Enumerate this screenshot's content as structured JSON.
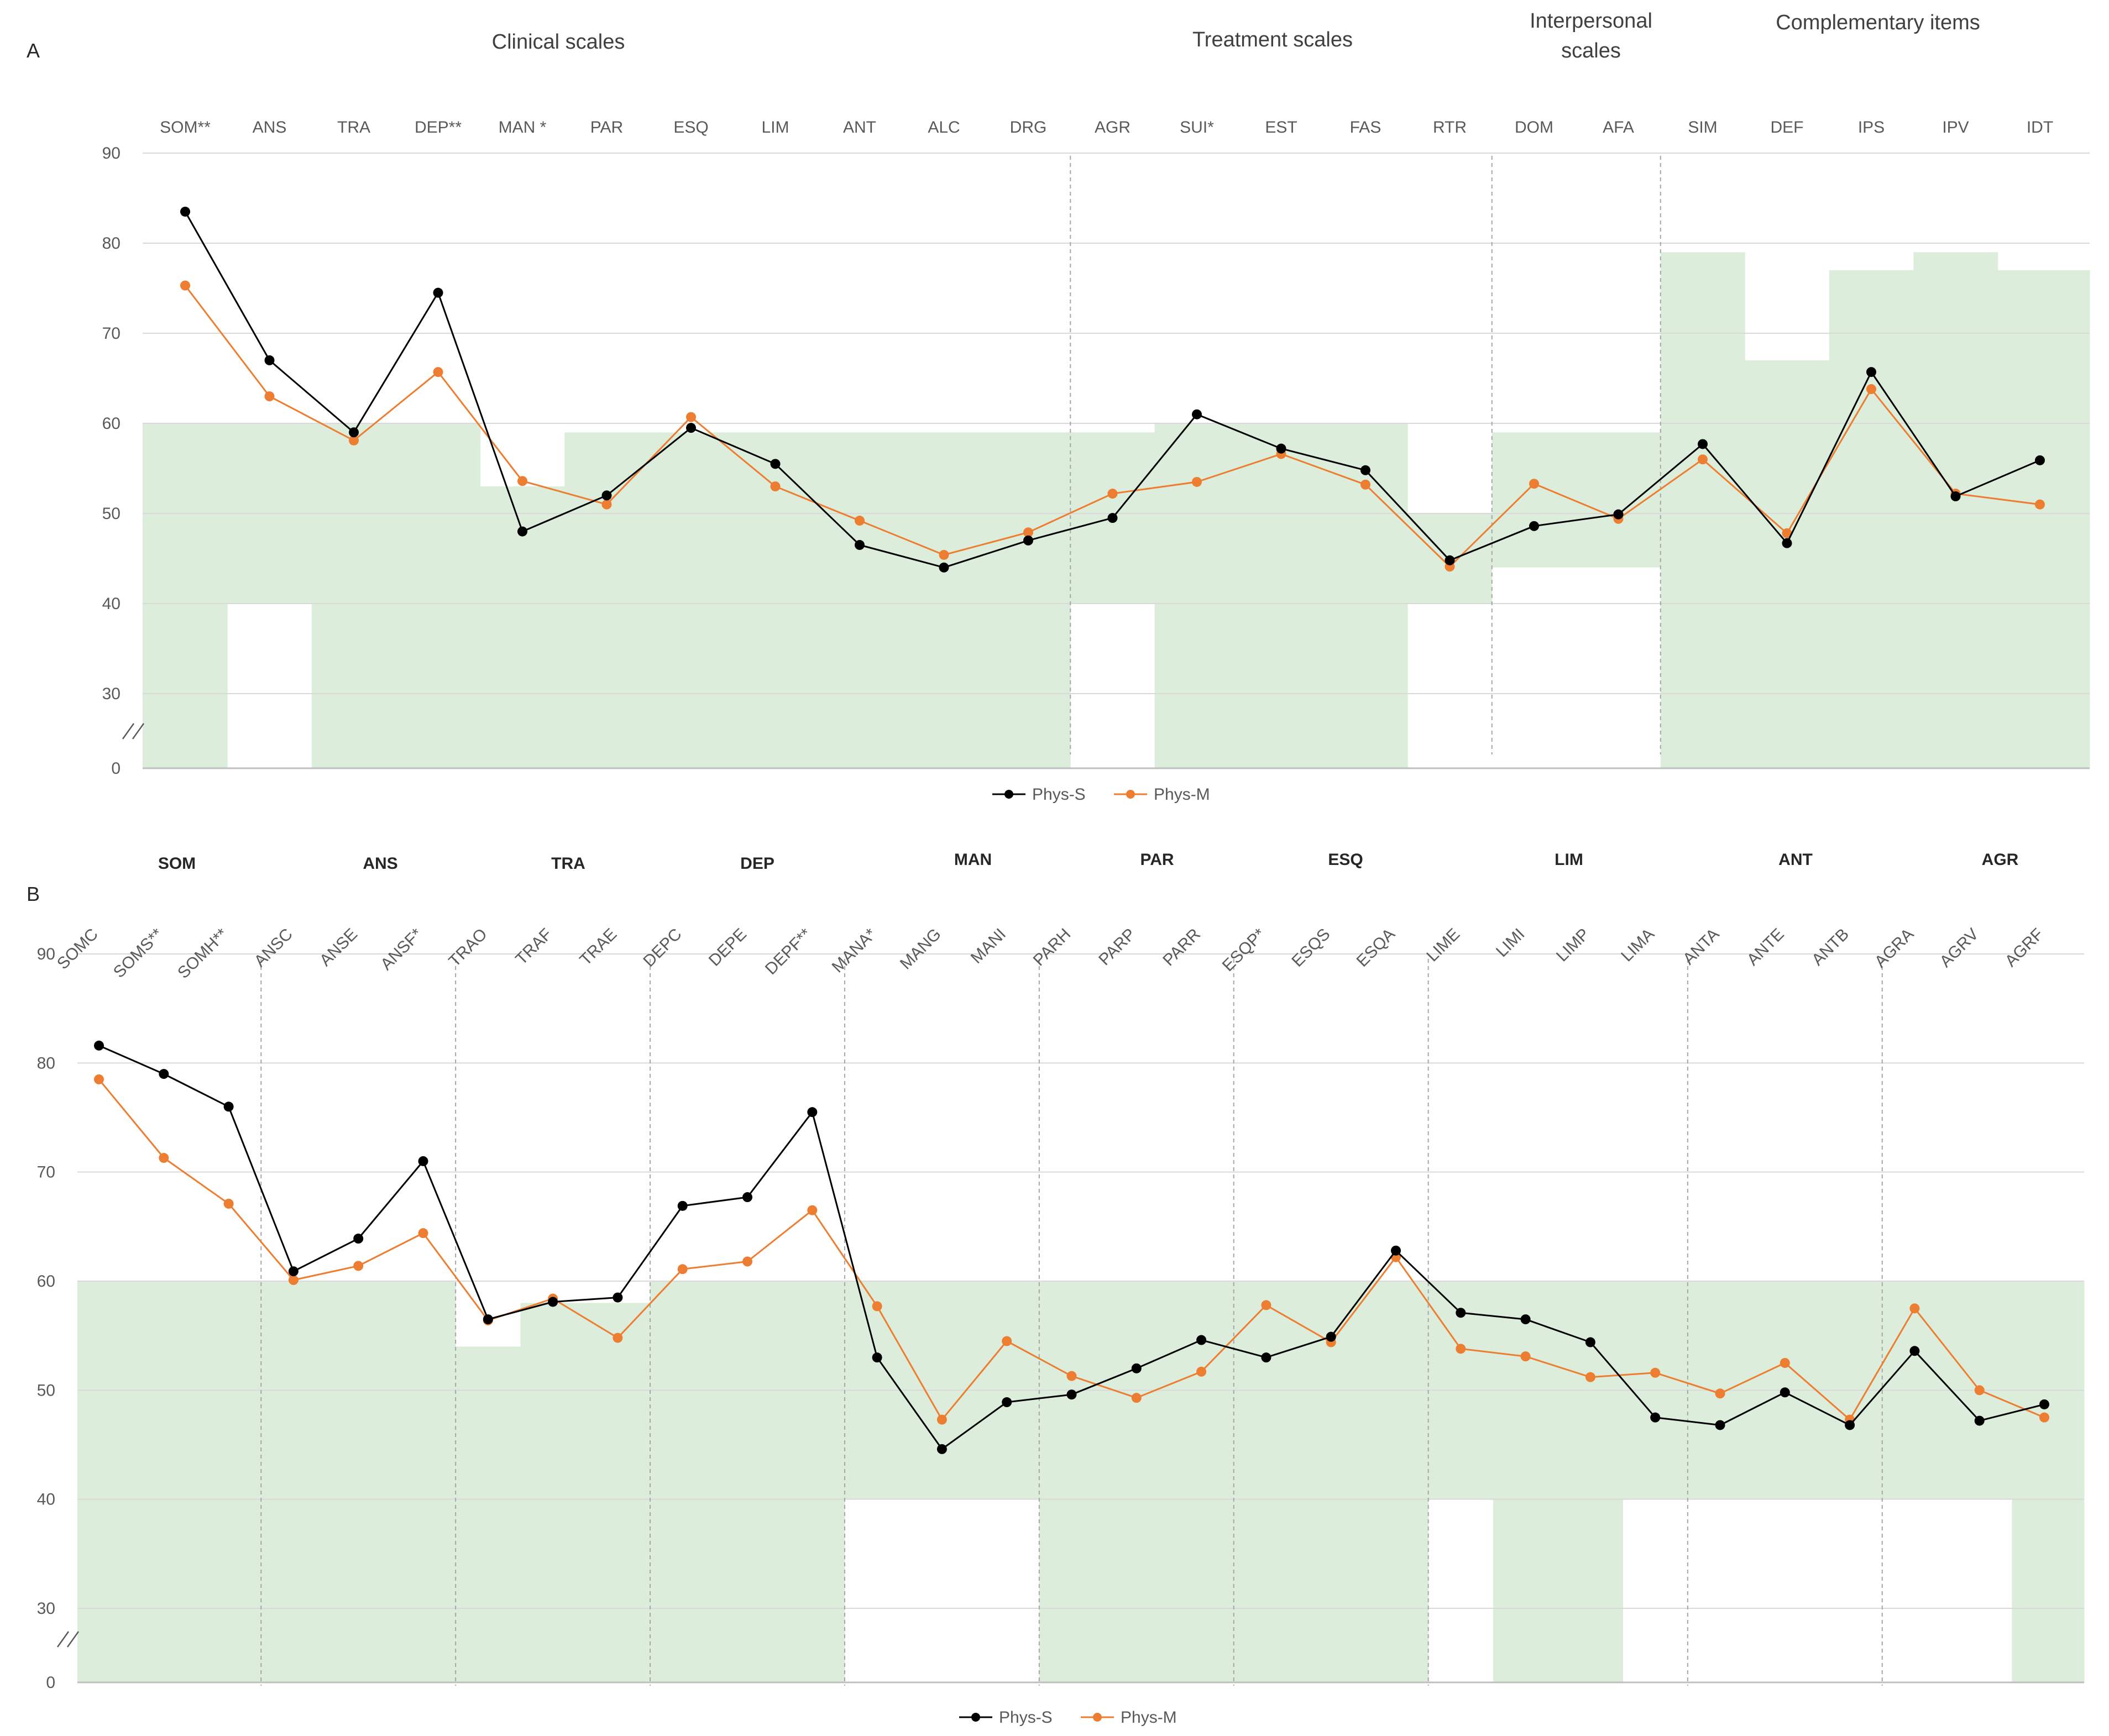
{
  "colors": {
    "band": "#dceedb",
    "grid": "#d9d9d9",
    "axis": "#bfbfbf",
    "separator": "#a6a6a6",
    "phys_s": "#000000",
    "phys_m": "#ed7d31"
  },
  "chart_data": [
    {
      "panel": "A",
      "type": "line",
      "group_labels": [
        "Clinical scales",
        "Treatment scales",
        "Interpersonal scales",
        "Complementary items"
      ],
      "categories": [
        "SOM**",
        "ANS",
        "TRA",
        "DEP**",
        "MAN *",
        "PAR",
        "ESQ",
        "LIM",
        "ANT",
        "ALC",
        "DRG",
        "AGR",
        "SUI*",
        "EST",
        "FAS",
        "RTR",
        "DOM",
        "AFA",
        "SIM",
        "DEF",
        "IPS",
        "IPV",
        "IDT"
      ],
      "yticks": [
        "90",
        "80",
        "70",
        "60",
        "50",
        "40",
        "30",
        "0"
      ],
      "y_range": [
        0,
        90
      ],
      "axis_break": true,
      "separators_after_index": [
        10,
        15,
        17
      ],
      "bands": [
        [
          0,
          60
        ],
        [
          40,
          60
        ],
        [
          0,
          60
        ],
        [
          0,
          60
        ],
        [
          0,
          53
        ],
        [
          0,
          59
        ],
        [
          0,
          59
        ],
        [
          0,
          59
        ],
        [
          0,
          59
        ],
        [
          0,
          59
        ],
        [
          0,
          59
        ],
        [
          40,
          59
        ],
        [
          0,
          60
        ],
        [
          0,
          60
        ],
        [
          0,
          60
        ],
        [
          40,
          50
        ],
        [
          44,
          59
        ],
        [
          44,
          59
        ],
        [
          0,
          79
        ],
        [
          0,
          67
        ],
        [
          0,
          77
        ],
        [
          0,
          79
        ],
        [
          0,
          77
        ]
      ],
      "series": [
        {
          "name": "Phys-S",
          "values": [
            83.5,
            67,
            59,
            74.5,
            48,
            52,
            59.5,
            55.5,
            46.5,
            44,
            47,
            49.5,
            61,
            57.2,
            54.8,
            44.8,
            48.6,
            49.9,
            57.7,
            46.7,
            65.7,
            51.9,
            55.9
          ]
        },
        {
          "name": "Phys-M",
          "values": [
            75.3,
            63,
            58.1,
            65.7,
            53.6,
            51,
            60.7,
            53,
            49.2,
            45.4,
            47.9,
            52.2,
            53.5,
            56.6,
            53.2,
            44.1,
            53.3,
            49.4,
            56,
            47.8,
            63.8,
            52.2,
            51
          ]
        }
      ]
    },
    {
      "panel": "B",
      "type": "line",
      "group_labels": [
        "SOM",
        "ANS",
        "TRA",
        "DEP",
        "MAN",
        "PAR",
        "ESQ",
        "LIM",
        "ANT",
        "AGR"
      ],
      "categories": [
        "SOMC",
        "SOMS**",
        "SOMH**",
        "ANSC",
        "ANSE",
        "ANSF*",
        "TRAO",
        "TRAF",
        "TRAE",
        "DEPC",
        "DEPE",
        "DEPF**",
        "MANA*",
        "MANG",
        "MANI",
        "PARH",
        "PARP",
        "PARR",
        "ESQP*",
        "ESQS",
        "ESQA",
        "LIME",
        "LIMI",
        "LIMP",
        "LIMA",
        "ANTA",
        "ANTE",
        "ANTB",
        "AGRA",
        "AGRV",
        "AGRF"
      ],
      "yticks": [
        "90",
        "80",
        "70",
        "60",
        "50",
        "40",
        "30",
        "0"
      ],
      "y_range": [
        0,
        90
      ],
      "axis_break": true,
      "separators_after_index": [
        2,
        5,
        8,
        11,
        14,
        17,
        20,
        24,
        27
      ],
      "bands": [
        [
          0,
          60
        ],
        [
          0,
          60
        ],
        [
          0,
          60
        ],
        [
          0,
          60
        ],
        [
          0,
          60
        ],
        [
          0,
          60
        ],
        [
          0,
          54
        ],
        [
          0,
          58
        ],
        [
          0,
          58
        ],
        [
          0,
          60
        ],
        [
          0,
          60
        ],
        [
          0,
          60
        ],
        [
          40,
          60
        ],
        [
          40,
          60
        ],
        [
          40,
          60
        ],
        [
          0,
          60
        ],
        [
          0,
          60
        ],
        [
          0,
          60
        ],
        [
          0,
          60
        ],
        [
          0,
          60
        ],
        [
          0,
          60
        ],
        [
          40,
          60
        ],
        [
          0,
          60
        ],
        [
          0,
          60
        ],
        [
          40,
          60
        ],
        [
          40,
          60
        ],
        [
          40,
          60
        ],
        [
          40,
          60
        ],
        [
          40,
          60
        ],
        [
          40,
          60
        ],
        [
          0,
          60
        ]
      ],
      "series": [
        {
          "name": "Phys-S",
          "values": [
            81.6,
            79,
            76,
            60.9,
            63.9,
            71,
            56.5,
            58.1,
            58.5,
            66.9,
            67.7,
            75.5,
            53,
            44.6,
            48.9,
            49.6,
            52,
            54.6,
            53,
            54.9,
            62.8,
            57.1,
            56.5,
            54.4,
            47.5,
            46.8,
            49.8,
            46.8,
            53.6,
            47.2,
            48.7
          ]
        },
        {
          "name": "Phys-M",
          "values": [
            78.5,
            71.3,
            67.1,
            60.1,
            61.4,
            64.4,
            56.4,
            58.4,
            54.8,
            61.1,
            61.8,
            66.5,
            57.7,
            47.3,
            54.5,
            51.3,
            49.3,
            51.7,
            57.8,
            54.4,
            62.2,
            53.8,
            53.1,
            51.2,
            51.6,
            49.7,
            52.5,
            47.3,
            57.5,
            50,
            47.5
          ]
        }
      ]
    }
  ]
}
